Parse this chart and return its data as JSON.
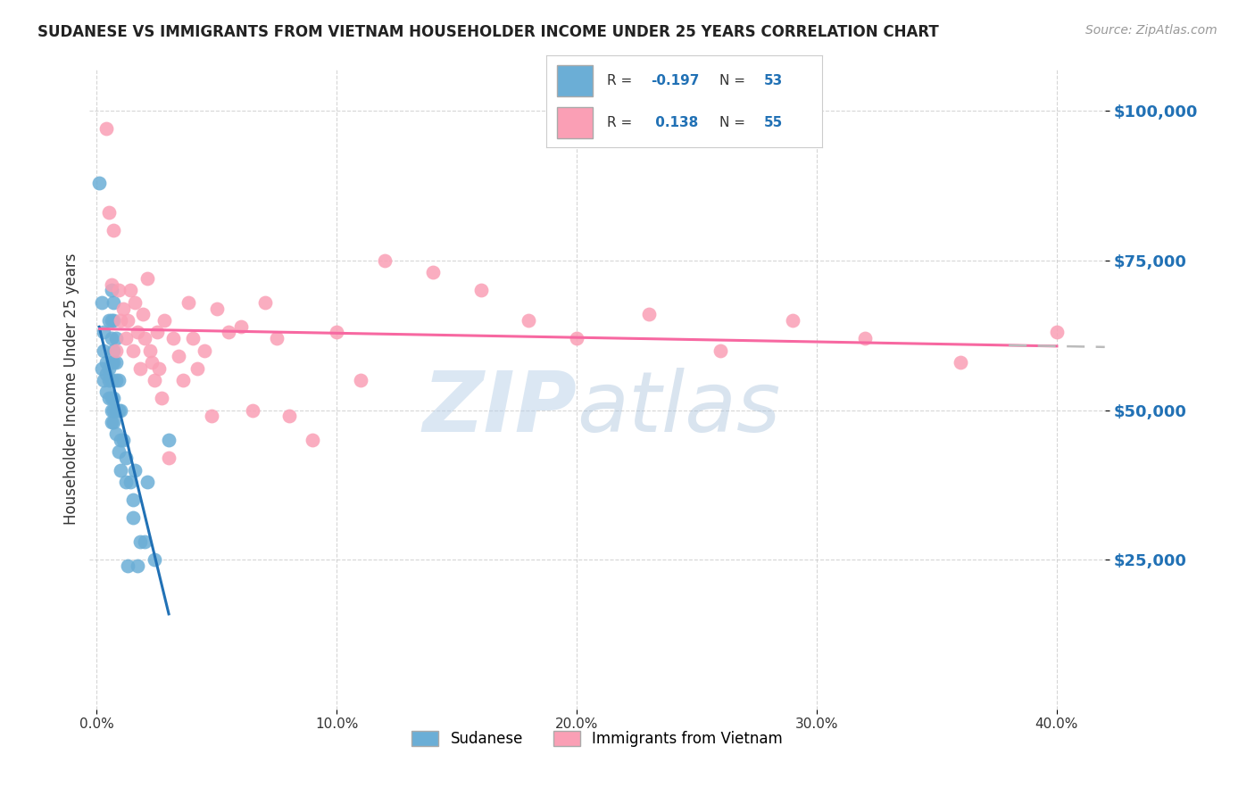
{
  "title": "SUDANESE VS IMMIGRANTS FROM VIETNAM HOUSEHOLDER INCOME UNDER 25 YEARS CORRELATION CHART",
  "source": "Source: ZipAtlas.com",
  "ylabel": "Householder Income Under 25 years",
  "ytick_values": [
    25000,
    50000,
    75000,
    100000
  ],
  "ymin": 0,
  "ymax": 107000,
  "xmin": -0.003,
  "xmax": 0.42,
  "color_blue": "#6baed6",
  "color_pink": "#fa9fb5",
  "color_blue_dark": "#2171b5",
  "color_pink_dark": "#f768a1",
  "color_gray_dash": "#bbbbbb",
  "sudanese_x": [
    0.001,
    0.002,
    0.002,
    0.003,
    0.003,
    0.003,
    0.004,
    0.004,
    0.004,
    0.005,
    0.005,
    0.005,
    0.005,
    0.006,
    0.006,
    0.006,
    0.006,
    0.006,
    0.006,
    0.006,
    0.006,
    0.007,
    0.007,
    0.007,
    0.007,
    0.007,
    0.007,
    0.007,
    0.008,
    0.008,
    0.008,
    0.008,
    0.008,
    0.009,
    0.009,
    0.009,
    0.01,
    0.01,
    0.01,
    0.011,
    0.012,
    0.012,
    0.013,
    0.014,
    0.015,
    0.015,
    0.016,
    0.017,
    0.018,
    0.02,
    0.021,
    0.024,
    0.03
  ],
  "sudanese_y": [
    88000,
    68000,
    57000,
    63000,
    60000,
    55000,
    58000,
    56000,
    53000,
    65000,
    57000,
    55000,
    52000,
    70000,
    65000,
    62000,
    58000,
    55000,
    52000,
    50000,
    48000,
    68000,
    65000,
    60000,
    58000,
    52000,
    50000,
    48000,
    62000,
    58000,
    55000,
    50000,
    46000,
    55000,
    50000,
    43000,
    50000,
    45000,
    40000,
    45000,
    42000,
    38000,
    24000,
    38000,
    35000,
    32000,
    40000,
    24000,
    28000,
    28000,
    38000,
    25000,
    45000
  ],
  "vietnam_x": [
    0.004,
    0.005,
    0.006,
    0.007,
    0.008,
    0.009,
    0.01,
    0.011,
    0.012,
    0.013,
    0.014,
    0.015,
    0.016,
    0.017,
    0.018,
    0.019,
    0.02,
    0.021,
    0.022,
    0.023,
    0.024,
    0.025,
    0.026,
    0.027,
    0.028,
    0.03,
    0.032,
    0.034,
    0.036,
    0.038,
    0.04,
    0.042,
    0.045,
    0.048,
    0.05,
    0.055,
    0.06,
    0.065,
    0.07,
    0.075,
    0.08,
    0.09,
    0.1,
    0.11,
    0.12,
    0.14,
    0.16,
    0.18,
    0.2,
    0.23,
    0.26,
    0.29,
    0.32,
    0.36,
    0.4
  ],
  "vietnam_y": [
    97000,
    83000,
    71000,
    80000,
    60000,
    70000,
    65000,
    67000,
    62000,
    65000,
    70000,
    60000,
    68000,
    63000,
    57000,
    66000,
    62000,
    72000,
    60000,
    58000,
    55000,
    63000,
    57000,
    52000,
    65000,
    42000,
    62000,
    59000,
    55000,
    68000,
    62000,
    57000,
    60000,
    49000,
    67000,
    63000,
    64000,
    50000,
    68000,
    62000,
    49000,
    45000,
    63000,
    55000,
    75000,
    73000,
    70000,
    65000,
    62000,
    66000,
    60000,
    65000,
    62000,
    58000,
    63000
  ]
}
